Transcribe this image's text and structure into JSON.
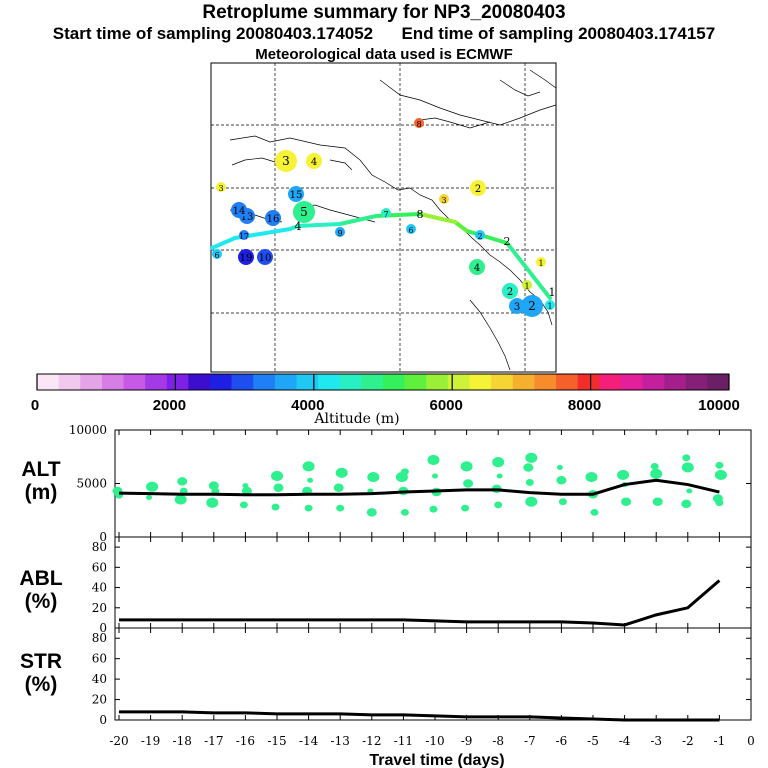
{
  "header": {
    "title": "Retroplume summary for NP3_20080403",
    "sampling": "Start time of sampling 20080403.174052      End time of sampling 20080403.174157",
    "met": "Meteorological data used is ECMWF"
  },
  "colorbar": {
    "label": "Altitude (m)",
    "ticks": [
      "0",
      "2000",
      "4000",
      "6000",
      "8000",
      "10000"
    ],
    "colors": [
      "#fbe6f8",
      "#f1c9ef",
      "#e5a4e8",
      "#d77de6",
      "#c65ae6",
      "#a43ae6",
      "#7d21e6",
      "#3c0fcf",
      "#1f1fe3",
      "#1f4ef0",
      "#1f7ff6",
      "#1fa6f6",
      "#1fc9f4",
      "#1fe8ee",
      "#28f0c2",
      "#2ef08e",
      "#34f05a",
      "#5ef03a",
      "#9af036",
      "#cef236",
      "#f6f236",
      "#f6d434",
      "#f6b030",
      "#f68c2c",
      "#f6602a",
      "#f42c2c",
      "#f41f7a",
      "#e41f9c",
      "#c41f9c",
      "#a41f8c",
      "#861f78",
      "#6a1f66"
    ]
  },
  "map": {
    "track": [
      {
        "label": "1",
        "alt": 4200
      },
      {
        "label": "2",
        "alt": 5000
      },
      {
        "label": "3",
        "alt": 5300
      },
      {
        "label": "4",
        "alt": 4900
      },
      {
        "label": "5",
        "alt": 4100
      },
      {
        "label": "6",
        "alt": 4000
      },
      {
        "label": "7",
        "alt": 4300
      },
      {
        "label": "8",
        "alt": 4400
      },
      {
        "label": "9",
        "alt": 4200
      },
      {
        "label": "10",
        "alt": 4100
      },
      {
        "label": "11",
        "alt": 4000
      },
      {
        "label": "12",
        "alt": 4000
      },
      {
        "label": "13",
        "alt": 4000
      },
      {
        "label": "14",
        "alt": 4000
      },
      {
        "label": "15",
        "alt": 4000
      },
      {
        "label": "16",
        "alt": 4000
      },
      {
        "label": "17",
        "alt": 4000
      },
      {
        "label": "18",
        "alt": 3900
      },
      {
        "label": "19",
        "alt": 3900
      },
      {
        "label": "20",
        "alt": 3900
      }
    ],
    "clusters": [
      {
        "label": "1",
        "size": "s",
        "color": "#1fe8ee"
      },
      {
        "label": "1",
        "size": "s",
        "color": "#f6f236"
      },
      {
        "label": "1",
        "size": "s",
        "color": "#cef236"
      },
      {
        "label": "2",
        "size": "m",
        "color": "#28f0c2"
      },
      {
        "label": "2",
        "size": "l",
        "color": "#1fa6f6"
      },
      {
        "label": "3",
        "size": "m",
        "color": "#1fa6f6"
      },
      {
        "label": "4",
        "size": "m",
        "color": "#2ef08e"
      },
      {
        "label": "2",
        "size": "m",
        "color": "#f6f236"
      },
      {
        "label": "3",
        "size": "s",
        "color": "#f6d434"
      },
      {
        "label": "3",
        "size": "l",
        "color": "#f6f236"
      },
      {
        "label": "4",
        "size": "m",
        "color": "#f6f236"
      },
      {
        "label": "5",
        "size": "l",
        "color": "#2ef08e"
      },
      {
        "label": "6",
        "size": "s",
        "color": "#1fc9f4"
      },
      {
        "label": "6",
        "size": "s",
        "color": "#1fc9f4"
      },
      {
        "label": "8",
        "size": "s",
        "color": "#f6602a"
      },
      {
        "label": "9",
        "size": "s",
        "color": "#1fa6f6"
      },
      {
        "label": "10",
        "size": "m",
        "color": "#1f4ef0"
      },
      {
        "label": "13",
        "size": "m",
        "color": "#1f7ff6"
      },
      {
        "label": "14",
        "size": "m",
        "color": "#1f7ff6"
      },
      {
        "label": "15",
        "size": "m",
        "color": "#1fa6f6"
      },
      {
        "label": "16",
        "size": "m",
        "color": "#1f7ff6"
      },
      {
        "label": "17",
        "size": "s",
        "color": "#1f7ff6"
      },
      {
        "label": "19",
        "size": "m",
        "color": "#1f1fe3"
      },
      {
        "label": "3",
        "size": "s",
        "color": "#f6f236"
      },
      {
        "label": "2",
        "size": "s",
        "color": "#1fc9f4"
      },
      {
        "label": "7",
        "size": "s",
        "color": "#28f0c2"
      }
    ]
  },
  "chart_data": [
    {
      "type": "scatter",
      "panel": "ALT",
      "ylabel": "ALT\n(m)",
      "ylim": [
        0,
        10000
      ],
      "yticks": [
        "0",
        "5000",
        "10000"
      ],
      "series": [
        {
          "name": "mean altitude",
          "x": [
            -20,
            -19,
            -18,
            -17,
            -16,
            -15,
            -14,
            -13,
            -12,
            -11,
            -10,
            -9,
            -8,
            -7,
            -6,
            -5,
            -4,
            -3,
            -2,
            -1
          ],
          "values": [
            4100,
            4050,
            4000,
            4000,
            3950,
            3950,
            4000,
            4000,
            4050,
            4200,
            4300,
            4400,
            4400,
            4150,
            4000,
            4000,
            4900,
            5300,
            4900,
            4200
          ]
        },
        {
          "name": "cluster altitudes",
          "points": [
            [
              -20,
              4300
            ],
            [
              -20,
              3900
            ],
            [
              -19,
              4700
            ],
            [
              -19,
              3700
            ],
            [
              -18,
              5200
            ],
            [
              -18,
              4300
            ],
            [
              -18,
              3500
            ],
            [
              -17,
              4800
            ],
            [
              -17,
              4300
            ],
            [
              -17,
              3200
            ],
            [
              -16,
              4800
            ],
            [
              -16,
              4300
            ],
            [
              -16,
              3000
            ],
            [
              -15,
              5700
            ],
            [
              -15,
              4600
            ],
            [
              -15,
              2800
            ],
            [
              -14,
              6600
            ],
            [
              -14,
              5300
            ],
            [
              -14,
              4300
            ],
            [
              -14,
              2700
            ],
            [
              -13,
              6000
            ],
            [
              -13,
              4600
            ],
            [
              -13,
              2700
            ],
            [
              -12,
              5600
            ],
            [
              -12,
              4300
            ],
            [
              -12,
              2300
            ],
            [
              -11,
              6100
            ],
            [
              -11,
              5600
            ],
            [
              -11,
              4300
            ],
            [
              -11,
              2300
            ],
            [
              -10,
              7200
            ],
            [
              -10,
              5700
            ],
            [
              -10,
              4200
            ],
            [
              -10,
              2600
            ],
            [
              -9,
              6600
            ],
            [
              -9,
              5000
            ],
            [
              -9,
              2700
            ],
            [
              -8,
              7000
            ],
            [
              -8,
              5700
            ],
            [
              -8,
              4500
            ],
            [
              -8,
              3000
            ],
            [
              -7,
              7400
            ],
            [
              -7,
              6500
            ],
            [
              -7,
              5100
            ],
            [
              -7,
              3300
            ],
            [
              -6,
              6500
            ],
            [
              -6,
              5300
            ],
            [
              -6,
              3300
            ],
            [
              -5,
              5600
            ],
            [
              -5,
              4000
            ],
            [
              -5,
              2300
            ],
            [
              -4,
              5800
            ],
            [
              -4,
              4900
            ],
            [
              -4,
              3300
            ],
            [
              -3,
              6600
            ],
            [
              -3,
              5900
            ],
            [
              -3,
              3300
            ],
            [
              -2,
              7400
            ],
            [
              -2,
              6500
            ],
            [
              -2,
              4300
            ],
            [
              -2,
              3100
            ],
            [
              -1,
              6700
            ],
            [
              -1,
              5800
            ],
            [
              -1,
              3600
            ],
            [
              -1,
              3200
            ]
          ]
        }
      ]
    },
    {
      "type": "line",
      "panel": "ABL",
      "ylabel": "ABL\n(%)",
      "ylim": [
        0,
        90
      ],
      "yticks": [
        "0",
        "20",
        "40",
        "60",
        "80"
      ],
      "x": [
        -20,
        -19,
        -18,
        -17,
        -16,
        -15,
        -14,
        -13,
        -12,
        -11,
        -10,
        -9,
        -8,
        -7,
        -6,
        -5,
        -4,
        -3,
        -2,
        -1
      ],
      "values": [
        8,
        8,
        8,
        8,
        8,
        8,
        8,
        8,
        8,
        8,
        7,
        6,
        6,
        6,
        6,
        5,
        3,
        13,
        20,
        47
      ]
    },
    {
      "type": "line",
      "panel": "STR",
      "ylabel": "STR\n(%)",
      "ylim": [
        0,
        90
      ],
      "yticks": [
        "0",
        "20",
        "40",
        "60",
        "80"
      ],
      "x": [
        -20,
        -19,
        -18,
        -17,
        -16,
        -15,
        -14,
        -13,
        -12,
        -11,
        -10,
        -9,
        -8,
        -7,
        -6,
        -5,
        -4,
        -3,
        -2,
        -1
      ],
      "values": [
        8,
        8,
        8,
        7,
        7,
        6,
        6,
        6,
        5,
        5,
        4,
        3,
        3,
        3,
        2,
        1,
        0,
        0,
        0,
        0
      ],
      "xlabel": "Travel time (days)",
      "xticks": [
        "-20",
        "-19",
        "-18",
        "-17",
        "-16",
        "-15",
        "-14",
        "-13",
        "-12",
        "-11",
        "-10",
        "-9",
        "-8",
        "-7",
        "-6",
        "-5",
        "-4",
        "-3",
        "-2",
        "-1",
        "0"
      ]
    }
  ]
}
